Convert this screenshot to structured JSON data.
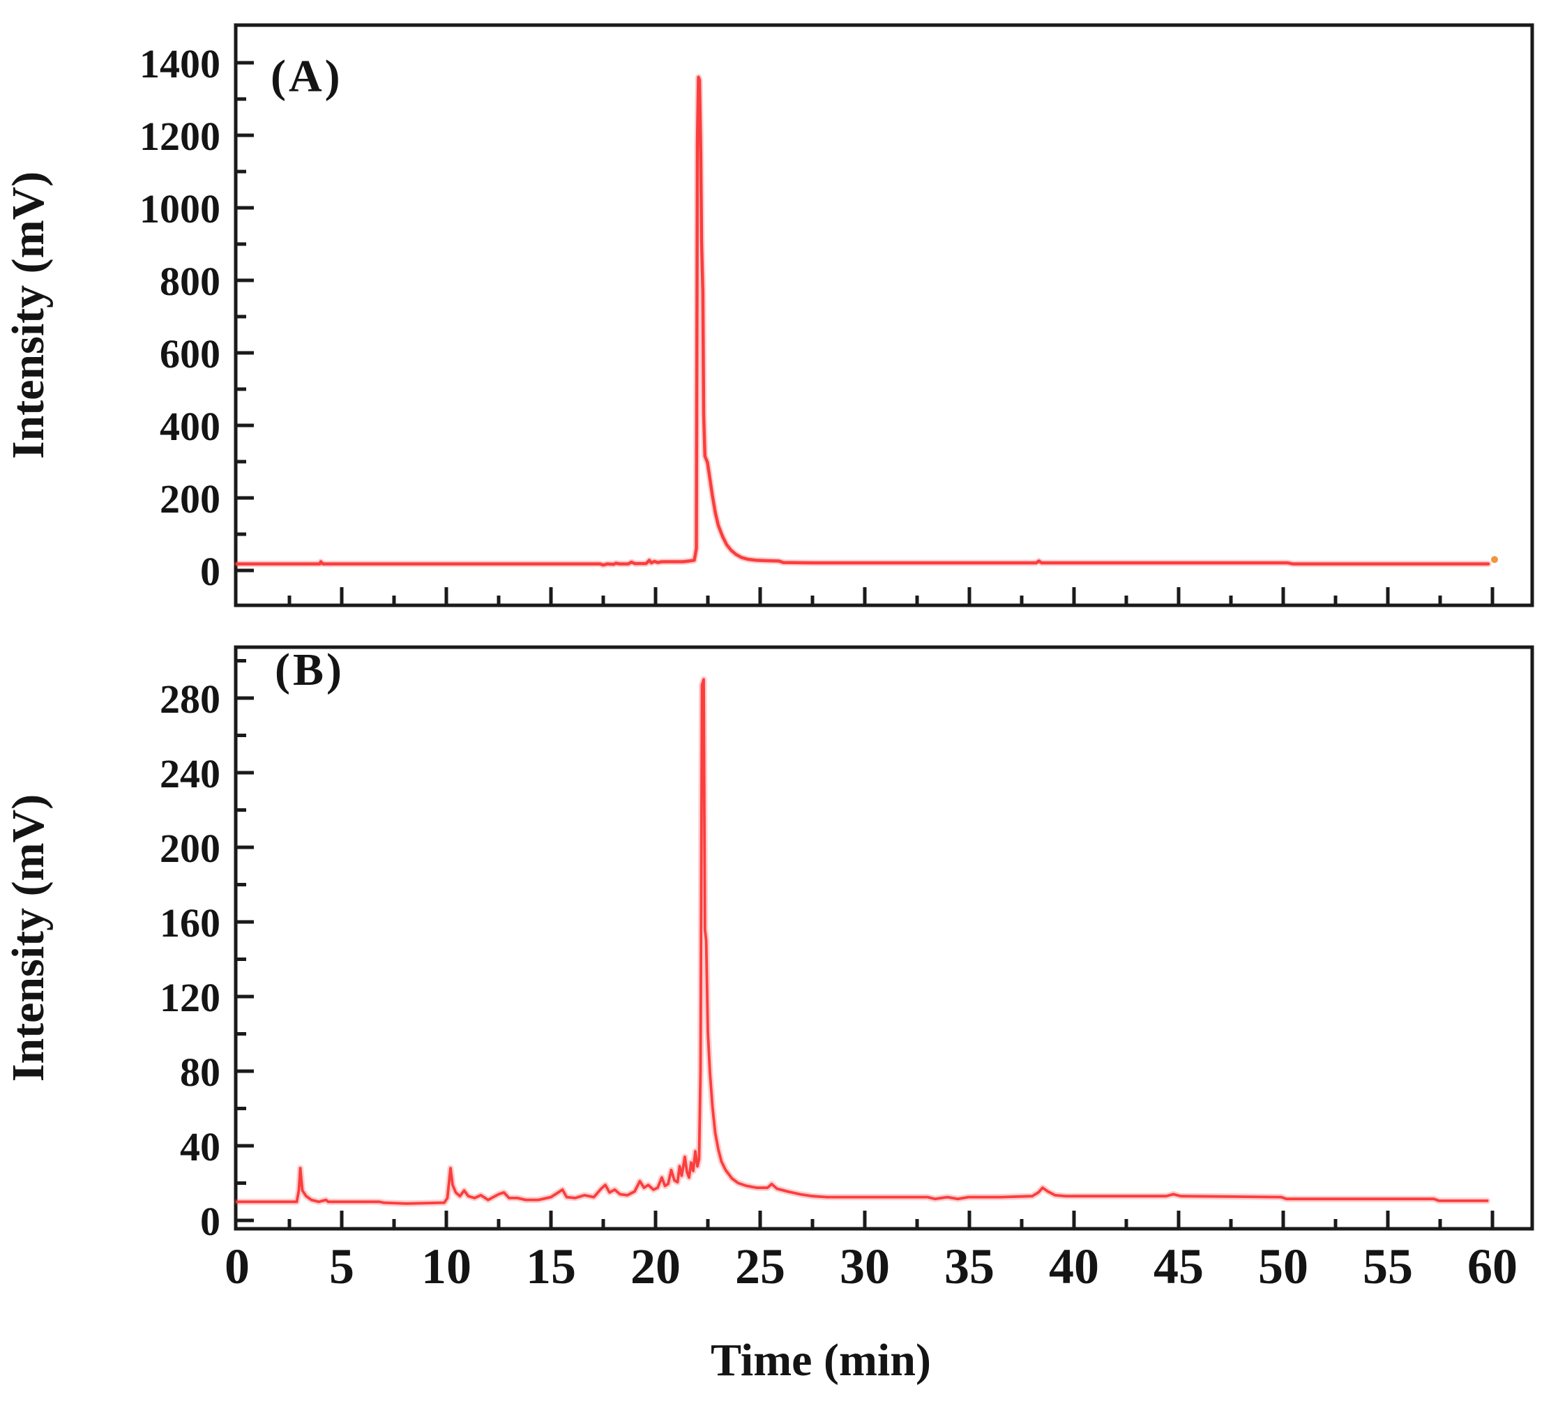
{
  "figure": {
    "description": "Two stacked HPLC chromatogram panels sharing a time axis",
    "xlabel": "Time (min)",
    "background": "#ffffff",
    "axis_color": "#1a1a1a",
    "text_color": "#141414",
    "trace_color": "#fa3e3e"
  },
  "chart_data": [
    {
      "id": "A",
      "type": "line",
      "panel_label": "(A)",
      "title": "",
      "xlabel": "Time (min)",
      "ylabel": "Intensity (mV)",
      "xlim": [
        0,
        60
      ],
      "ylim": [
        0,
        1400
      ],
      "grid": false,
      "legend": "none",
      "yticks": {
        "major_step": 200,
        "minor_step": 100,
        "labels": [
          "0",
          "200",
          "400",
          "600",
          "800",
          "1000",
          "1200",
          "1400"
        ]
      },
      "xticks": {
        "major_step": 5,
        "minor_step": 2.5,
        "show_labels": false,
        "labels": [
          "0",
          "5",
          "10",
          "15",
          "20",
          "25",
          "30",
          "35",
          "40",
          "45",
          "50",
          "55",
          "60"
        ]
      },
      "baseline_mV": 18,
      "main_peak": {
        "t_min": 22.1,
        "height_mV": 1360
      },
      "series": [
        {
          "name": "chromatogram-A",
          "color": "#fa3e3e",
          "points": [
            [
              0,
              18
            ],
            [
              3.95,
              18
            ],
            [
              4.0,
              24
            ],
            [
              4.1,
              18
            ],
            [
              6.0,
              18
            ],
            [
              17.35,
              18
            ],
            [
              17.5,
              15
            ],
            [
              17.7,
              18
            ],
            [
              18.0,
              17
            ],
            [
              18.1,
              20
            ],
            [
              18.3,
              18
            ],
            [
              18.7,
              18
            ],
            [
              18.85,
              23
            ],
            [
              19.0,
              19
            ],
            [
              19.55,
              19
            ],
            [
              19.7,
              28
            ],
            [
              19.8,
              21
            ],
            [
              19.95,
              25
            ],
            [
              20.1,
              22
            ],
            [
              20.3,
              24
            ],
            [
              21.3,
              24
            ],
            [
              21.6,
              26
            ],
            [
              21.85,
              28
            ],
            [
              21.95,
              60
            ],
            [
              22.0,
              1180
            ],
            [
              22.05,
              1360
            ],
            [
              22.1,
              1352
            ],
            [
              22.16,
              1150
            ],
            [
              22.2,
              905
            ],
            [
              22.26,
              770
            ],
            [
              22.3,
              430
            ],
            [
              22.36,
              315
            ],
            [
              22.48,
              298
            ],
            [
              22.6,
              252
            ],
            [
              22.72,
              205
            ],
            [
              22.86,
              158
            ],
            [
              23.0,
              124
            ],
            [
              23.2,
              94
            ],
            [
              23.4,
              71
            ],
            [
              23.62,
              55
            ],
            [
              23.85,
              44
            ],
            [
              24.1,
              36
            ],
            [
              24.4,
              31
            ],
            [
              24.8,
              28
            ],
            [
              25.3,
              27
            ],
            [
              25.9,
              26
            ],
            [
              26.1,
              22
            ],
            [
              27.5,
              21
            ],
            [
              38.2,
              21
            ],
            [
              38.32,
              26
            ],
            [
              38.45,
              21
            ],
            [
              50.2,
              21
            ],
            [
              50.45,
              18
            ],
            [
              59.8,
              18
            ]
          ]
        }
      ],
      "end_dot": {
        "t": 60.1,
        "mV": 30,
        "color": "#f0953e"
      }
    },
    {
      "id": "B",
      "type": "line",
      "panel_label": "(B)",
      "title": "",
      "xlabel": "Time (min)",
      "ylabel": "Intensity (mV)",
      "xlim": [
        0,
        60
      ],
      "ylim": [
        0,
        280
      ],
      "grid": false,
      "legend": "none",
      "yticks": {
        "major_step": 40,
        "minor_step": 20,
        "labels": [
          "0",
          "40",
          "80",
          "120",
          "160",
          "200",
          "240",
          "280"
        ]
      },
      "xticks": {
        "major_step": 5,
        "minor_step": 2.5,
        "show_labels": true,
        "labels": [
          "0",
          "5",
          "10",
          "15",
          "20",
          "25",
          "30",
          "35",
          "40",
          "45",
          "50",
          "55",
          "60"
        ]
      },
      "baseline_mV": 10,
      "main_peak": {
        "t_min": 22.25,
        "height_mV": 295
      },
      "series": [
        {
          "name": "chromatogram-B",
          "color": "#fa3e3e",
          "points": [
            [
              0,
              10
            ],
            [
              2.85,
              10
            ],
            [
              2.95,
              16
            ],
            [
              3.02,
              28
            ],
            [
              3.12,
              16
            ],
            [
              3.3,
              13
            ],
            [
              3.55,
              11
            ],
            [
              3.9,
              10
            ],
            [
              4.25,
              11
            ],
            [
              4.35,
              10
            ],
            [
              6.8,
              10
            ],
            [
              7.0,
              9.5
            ],
            [
              8.1,
              9
            ],
            [
              9.9,
              9.5
            ],
            [
              10.05,
              12
            ],
            [
              10.2,
              28
            ],
            [
              10.3,
              19
            ],
            [
              10.45,
              15
            ],
            [
              10.65,
              13
            ],
            [
              10.85,
              16
            ],
            [
              11.05,
              13
            ],
            [
              11.35,
              12
            ],
            [
              11.65,
              13.5
            ],
            [
              12.0,
              11
            ],
            [
              12.5,
              14
            ],
            [
              12.75,
              15
            ],
            [
              13.0,
              12
            ],
            [
              13.4,
              12
            ],
            [
              13.8,
              11
            ],
            [
              14.4,
              11
            ],
            [
              15.0,
              12.5
            ],
            [
              15.35,
              15
            ],
            [
              15.55,
              16.5
            ],
            [
              15.75,
              12.5
            ],
            [
              16.15,
              12
            ],
            [
              16.6,
              13.5
            ],
            [
              17.05,
              12.5
            ],
            [
              17.4,
              17
            ],
            [
              17.6,
              19
            ],
            [
              17.8,
              15
            ],
            [
              18.05,
              16.5
            ],
            [
              18.3,
              14
            ],
            [
              18.65,
              13.5
            ],
            [
              19.0,
              15.5
            ],
            [
              19.25,
              21
            ],
            [
              19.45,
              17.5
            ],
            [
              19.65,
              19
            ],
            [
              19.9,
              16.5
            ],
            [
              20.1,
              17.5
            ],
            [
              20.3,
              23
            ],
            [
              20.45,
              18.5
            ],
            [
              20.6,
              19.5
            ],
            [
              20.75,
              27
            ],
            [
              20.9,
              21.5
            ],
            [
              21.05,
              20.5
            ],
            [
              21.15,
              29
            ],
            [
              21.25,
              24
            ],
            [
              21.4,
              34
            ],
            [
              21.5,
              26
            ],
            [
              21.6,
              23
            ],
            [
              21.7,
              31
            ],
            [
              21.8,
              26.5
            ],
            [
              21.9,
              37
            ],
            [
              22.0,
              29
            ],
            [
              22.08,
              33
            ],
            [
              22.15,
              80
            ],
            [
              22.22,
              287
            ],
            [
              22.3,
              290
            ],
            [
              22.36,
              156
            ],
            [
              22.42,
              150
            ],
            [
              22.5,
              101
            ],
            [
              22.6,
              79
            ],
            [
              22.72,
              61
            ],
            [
              22.85,
              47
            ],
            [
              23.0,
              38
            ],
            [
              23.15,
              31.5
            ],
            [
              23.35,
              27
            ],
            [
              23.65,
              22.5
            ],
            [
              23.95,
              20
            ],
            [
              24.35,
              18.5
            ],
            [
              24.85,
              17.5
            ],
            [
              25.35,
              17.5
            ],
            [
              25.55,
              19.5
            ],
            [
              25.8,
              17
            ],
            [
              26.3,
              15.5
            ],
            [
              26.9,
              14
            ],
            [
              27.5,
              13
            ],
            [
              28.2,
              12.5
            ],
            [
              29.5,
              12.5
            ],
            [
              33.0,
              12.5
            ],
            [
              33.35,
              11.5
            ],
            [
              33.95,
              12.5
            ],
            [
              34.45,
              11.5
            ],
            [
              34.95,
              12.5
            ],
            [
              36.5,
              12.5
            ],
            [
              38.0,
              13
            ],
            [
              38.3,
              15
            ],
            [
              38.5,
              17.5
            ],
            [
              38.75,
              15.5
            ],
            [
              39.1,
              13.5
            ],
            [
              39.6,
              13
            ],
            [
              44.4,
              13
            ],
            [
              44.75,
              14
            ],
            [
              45.1,
              13
            ],
            [
              49.9,
              12.5
            ],
            [
              50.15,
              11.5
            ],
            [
              57.2,
              11.5
            ],
            [
              57.45,
              10.5
            ],
            [
              59.75,
              10.5
            ]
          ]
        }
      ]
    }
  ]
}
